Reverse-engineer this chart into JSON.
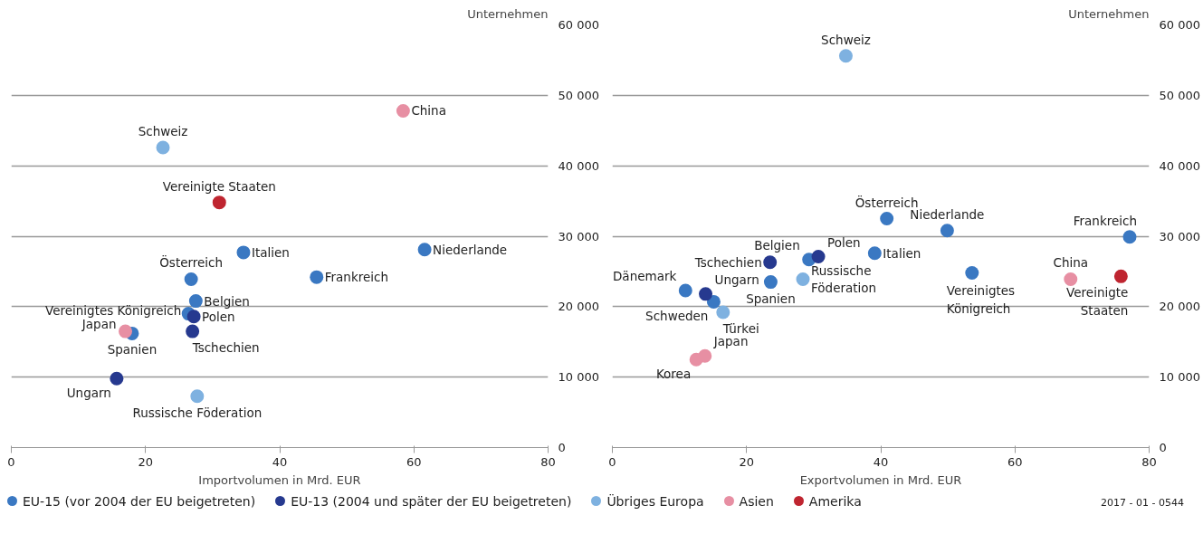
{
  "chart_data": [
    {
      "type": "scatter",
      "xlabel": "Importvolumen in Mrd. EUR",
      "ylabel": "Unternehmen",
      "xlim": [
        0,
        80
      ],
      "xticks": [
        0,
        20,
        40,
        60,
        80
      ],
      "ylim": [
        0,
        60000
      ],
      "yticks": [
        {
          "value": 0,
          "label": "0"
        },
        {
          "value": 10000,
          "label": "10 000"
        },
        {
          "value": 20000,
          "label": "20 000"
        },
        {
          "value": 30000,
          "label": "30 000"
        },
        {
          "value": 40000,
          "label": "40 000"
        },
        {
          "value": 50000,
          "label": "50 000"
        },
        {
          "value": 60000,
          "label": "60 000"
        }
      ],
      "grid": "y",
      "marker": "circle",
      "legend": "bottom",
      "series": [
        {
          "name": "EU-15 (vor 2004 der EU beigetreten)",
          "color": "#3a78c2",
          "x": [
            61.6,
            45.5,
            34.6,
            26.8,
            27.5,
            26.4,
            18.0
          ],
          "values": [
            28100,
            24200,
            27700,
            23900,
            20800,
            19000,
            16200
          ]
        },
        {
          "name": "EU-13 (2004 und später der EU beigetreten)",
          "color": "#26398f",
          "x": [
            27.2,
            27.0,
            15.7
          ],
          "values": [
            18600,
            16500,
            9800
          ]
        },
        {
          "name": "Übriges Europa",
          "color": "#7eb1e0",
          "x": [
            22.6,
            27.7
          ],
          "values": [
            42600,
            7300
          ]
        },
        {
          "name": "Asien",
          "color": "#e78fa3",
          "x": [
            58.4,
            17.0
          ],
          "values": [
            47800,
            16500
          ]
        },
        {
          "name": "Amerika",
          "color": "#bf2530",
          "x": [
            31.0
          ],
          "values": [
            34800
          ]
        }
      ],
      "annotations": [
        {
          "text": "China",
          "x": 58.4,
          "y": 47800
        },
        {
          "text": "Schweiz",
          "x": 22.6,
          "y": 42600
        },
        {
          "text": "Vereinigte Staaten",
          "x": 31.0,
          "y": 34800
        },
        {
          "text": "Italien",
          "x": 34.6,
          "y": 27700
        },
        {
          "text": "Niederlande",
          "x": 61.6,
          "y": 28100
        },
        {
          "text": "Frankreich",
          "x": 45.5,
          "y": 24200
        },
        {
          "text": "Österreich",
          "x": 26.8,
          "y": 23900
        },
        {
          "text": "Belgien",
          "x": 27.5,
          "y": 20800
        },
        {
          "text": "Vereinigtes Königreich",
          "x": 26.4,
          "y": 19000
        },
        {
          "text": "Polen",
          "x": 27.2,
          "y": 18600
        },
        {
          "text": "Japan",
          "x": 17.0,
          "y": 16500
        },
        {
          "text": "Spanien",
          "x": 18.0,
          "y": 16200
        },
        {
          "text": "Tschechien",
          "x": 27.0,
          "y": 16500
        },
        {
          "text": "Ungarn",
          "x": 15.7,
          "y": 9800
        },
        {
          "text": "Russische Föderation",
          "x": 27.7,
          "y": 7300
        }
      ]
    },
    {
      "type": "scatter",
      "xlabel": "Exportvolumen in Mrd. EUR",
      "ylabel": "Unternehmen",
      "xlim": [
        0,
        80
      ],
      "xticks": [
        0,
        20,
        40,
        60,
        80
      ],
      "ylim": [
        0,
        60000
      ],
      "yticks": [
        {
          "value": 0,
          "label": "0"
        },
        {
          "value": 10000,
          "label": "10 000"
        },
        {
          "value": 20000,
          "label": "20 000"
        },
        {
          "value": 30000,
          "label": "30 000"
        },
        {
          "value": 40000,
          "label": "40 000"
        },
        {
          "value": 50000,
          "label": "50 000"
        },
        {
          "value": 60000,
          "label": "60 000"
        }
      ],
      "grid": "y",
      "marker": "circle",
      "series": [
        {
          "color": "#3a78c2",
          "x": [
            40.9,
            49.9,
            77.1,
            39.1,
            29.3,
            53.6,
            23.6,
            10.9,
            15.1
          ],
          "values": [
            32500,
            30800,
            29900,
            27600,
            26700,
            24800,
            23500,
            22300,
            20700
          ]
        },
        {
          "color": "#26398f",
          "x": [
            30.7,
            23.5,
            13.9
          ],
          "values": [
            27100,
            26300,
            21800
          ]
        },
        {
          "color": "#7eb1e0",
          "x": [
            34.8,
            28.4,
            16.5
          ],
          "values": [
            55600,
            23900,
            19200
          ]
        },
        {
          "color": "#e78fa3",
          "x": [
            68.3,
            13.8,
            12.5
          ],
          "values": [
            23900,
            13000,
            12500
          ]
        },
        {
          "color": "#bf2530",
          "x": [
            75.8
          ],
          "values": [
            24300
          ]
        }
      ],
      "annotations": [
        {
          "text": "Schweiz",
          "x": 34.8,
          "y": 55600
        },
        {
          "text": "Österreich",
          "x": 40.9,
          "y": 32500
        },
        {
          "text": "Niederlande",
          "x": 49.9,
          "y": 30800
        },
        {
          "text": "Frankreich",
          "x": 77.1,
          "y": 29900
        },
        {
          "text": "Italien",
          "x": 39.1,
          "y": 27600
        },
        {
          "text": "Polen",
          "x": 30.7,
          "y": 27100
        },
        {
          "text": "Belgien",
          "x": 29.3,
          "y": 26700
        },
        {
          "text": "Tschechien",
          "x": 23.5,
          "y": 26300
        },
        {
          "text": "Vereinigtes\nKönigreich",
          "x": 53.6,
          "y": 24800
        },
        {
          "text": "Russische\nFöderation",
          "x": 28.4,
          "y": 23900
        },
        {
          "text": "Spanien",
          "x": 23.6,
          "y": 23500
        },
        {
          "text": "China",
          "x": 68.3,
          "y": 23900
        },
        {
          "text": "Vereinigte\nStaaten",
          "x": 75.8,
          "y": 24300
        },
        {
          "text": "Dänemark",
          "x": 10.9,
          "y": 22300
        },
        {
          "text": "Ungarn",
          "x": 13.9,
          "y": 21800
        },
        {
          "text": "Schweden",
          "x": 15.1,
          "y": 20700
        },
        {
          "text": "Türkei",
          "x": 16.5,
          "y": 19200
        },
        {
          "text": "Japan",
          "x": 13.8,
          "y": 13000
        },
        {
          "text": "Korea",
          "x": 12.5,
          "y": 12500
        },
        "2017 - 01 - 0544"
      ]
    }
  ]
}
